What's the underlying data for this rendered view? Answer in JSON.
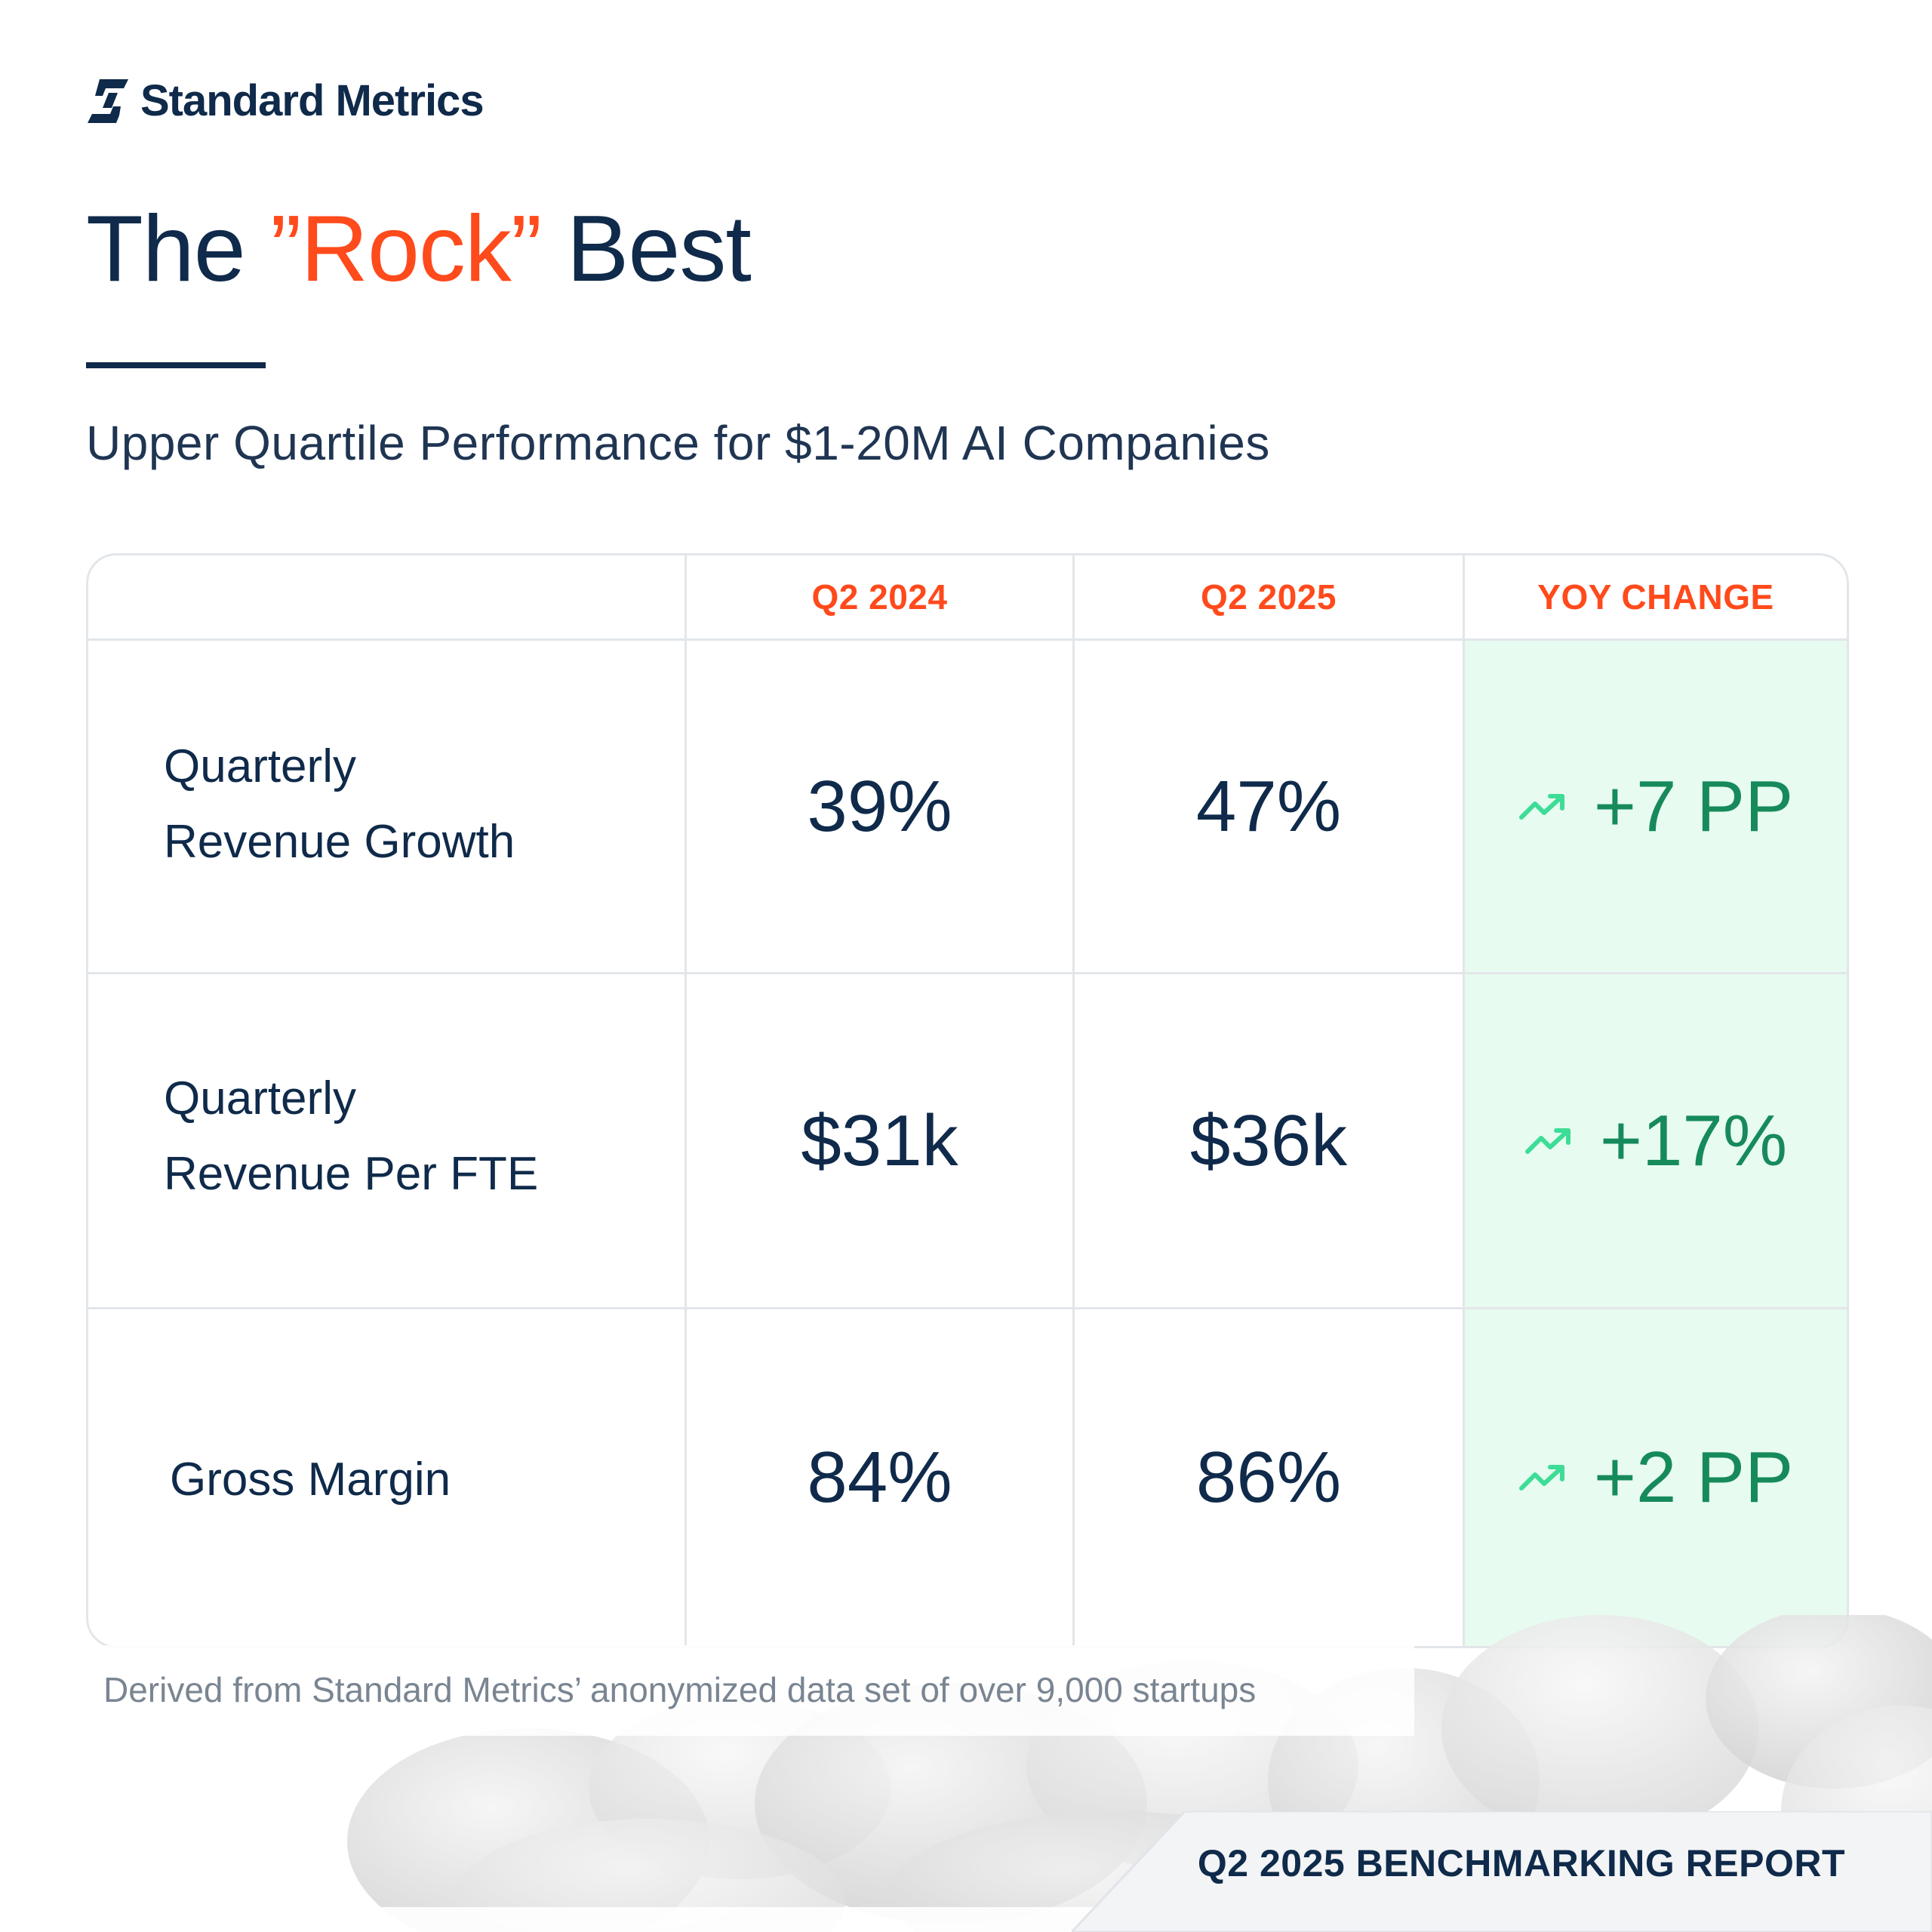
{
  "brand": {
    "name": "Standard Metrics"
  },
  "title": {
    "before": "The ",
    "accent": "”Rock”",
    "after": " Best"
  },
  "subtitle": "Upper Quartile Performance for $1-20M AI Companies",
  "table": {
    "headers": [
      "",
      "Q2 2024",
      "Q2 2025",
      "YOY CHANGE"
    ],
    "rows": [
      {
        "label_line1": "Quarterly",
        "label_line2": "Revenue Growth",
        "q2_2024": "39%",
        "q2_2025": "47%",
        "yoy": "+7 PP"
      },
      {
        "label_line1": "Quarterly",
        "label_line2": "Revenue Per FTE",
        "q2_2024": "$31k",
        "q2_2025": "$36k",
        "yoy": "+17%"
      },
      {
        "label_line1": "Gross Margin",
        "label_line2": "",
        "q2_2024": "84%",
        "q2_2025": "86%",
        "yoy": "+2 PP"
      }
    ]
  },
  "footnote": "Derived from Standard Metrics’ anonymized data set of over 9,000 startups",
  "report_label": "Q2 2025 BENCHMARKING REPORT",
  "icons": {
    "logo": "standard-metrics-logo-icon",
    "trend": "trending-up-icon"
  },
  "colors": {
    "navy": "#0f2a4a",
    "accent": "#ff4a1c",
    "positive": "#168a5b",
    "positive_bg": "#e7fbf0"
  }
}
